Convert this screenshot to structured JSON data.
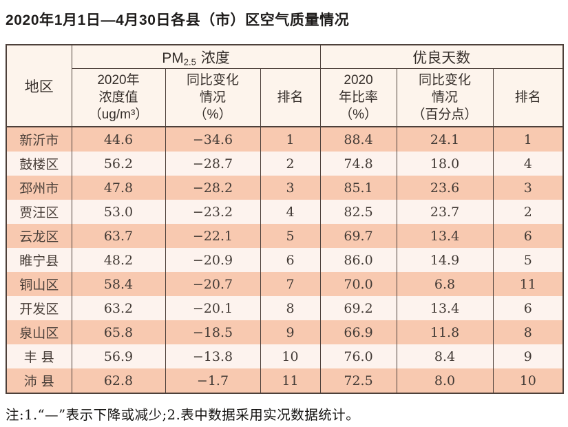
{
  "title": "2020年1月1日—4月30日各县（市）区空气质量情况",
  "note": "注:1.“—”表示下降或减少;2.表中数据采用实况数据统计。",
  "colors": {
    "row_odd_bg": "#f8c9b0",
    "row_even_bg": "#fdf3ee",
    "header_bg": "#fdf4ec",
    "border": "#4d403a",
    "text": "#423a35"
  },
  "table": {
    "corner_header": "地区",
    "pm_group": {
      "prefix": "PM",
      "sub": "2.5",
      "suffix": "浓度"
    },
    "days_group_label": "优良天数",
    "subheaders": {
      "pm_value": "2020年\n浓度值\n（ug/m³）",
      "pm_change": "同比变化\n情况\n（%）",
      "pm_rank": "排名",
      "days_rate": "2020\n年比率\n（%）",
      "days_change": "同比变化\n情况\n（百分点）",
      "days_rank": "排名"
    },
    "rows": [
      {
        "region": "新沂市",
        "pm_value": "44.6",
        "pm_change": "−34.6",
        "pm_rank": "1",
        "days_rate": "88.4",
        "days_change": "24.1",
        "days_rank": "1"
      },
      {
        "region": "鼓楼区",
        "pm_value": "56.2",
        "pm_change": "−28.7",
        "pm_rank": "2",
        "days_rate": "74.8",
        "days_change": "18.0",
        "days_rank": "4"
      },
      {
        "region": "邳州市",
        "pm_value": "47.8",
        "pm_change": "−28.2",
        "pm_rank": "3",
        "days_rate": "85.1",
        "days_change": "23.6",
        "days_rank": "3"
      },
      {
        "region": "贾汪区",
        "pm_value": "53.0",
        "pm_change": "−23.2",
        "pm_rank": "4",
        "days_rate": "82.5",
        "days_change": "23.7",
        "days_rank": "2"
      },
      {
        "region": "云龙区",
        "pm_value": "63.7",
        "pm_change": "−22.1",
        "pm_rank": "5",
        "days_rate": "69.7",
        "days_change": "13.4",
        "days_rank": "6"
      },
      {
        "region": "睢宁县",
        "pm_value": "48.2",
        "pm_change": "−20.9",
        "pm_rank": "6",
        "days_rate": "86.0",
        "days_change": "14.9",
        "days_rank": "5"
      },
      {
        "region": "铜山区",
        "pm_value": "58.4",
        "pm_change": "−20.7",
        "pm_rank": "7",
        "days_rate": "70.0",
        "days_change": "6.8",
        "days_rank": "11"
      },
      {
        "region": "开发区",
        "pm_value": "63.2",
        "pm_change": "−20.1",
        "pm_rank": "8",
        "days_rate": "69.2",
        "days_change": "13.4",
        "days_rank": "6"
      },
      {
        "region": "泉山区",
        "pm_value": "65.8",
        "pm_change": "−18.5",
        "pm_rank": "9",
        "days_rate": "66.9",
        "days_change": "11.8",
        "days_rank": "8"
      },
      {
        "region": "丰 县",
        "pm_value": "56.9",
        "pm_change": "−13.8",
        "pm_rank": "10",
        "days_rate": "76.0",
        "days_change": "8.4",
        "days_rank": "9"
      },
      {
        "region": "沛 县",
        "pm_value": "62.8",
        "pm_change": "−1.7",
        "pm_rank": "11",
        "days_rate": "72.5",
        "days_change": "8.0",
        "days_rank": "10"
      }
    ]
  }
}
